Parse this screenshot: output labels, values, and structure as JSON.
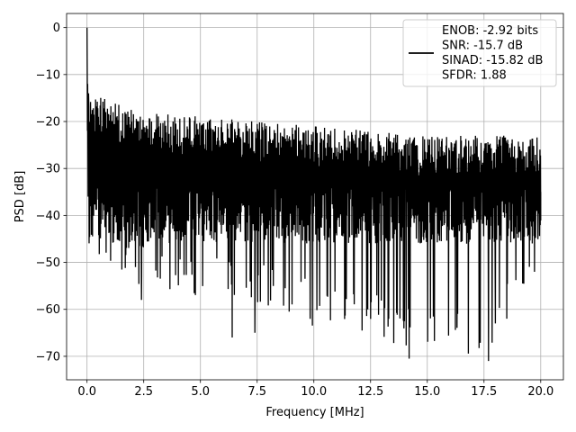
{
  "chart_data": {
    "type": "line",
    "title": "",
    "xlabel": "Frequency [MHz]",
    "ylabel": "PSD [dB]",
    "xlim": [
      -0.9,
      21.0
    ],
    "ylim": [
      -75,
      3
    ],
    "x_ticks": [
      0.0,
      2.5,
      5.0,
      7.5,
      10.0,
      12.5,
      15.0,
      17.5,
      20.0
    ],
    "x_tick_labels": [
      "0.0",
      "2.5",
      "5.0",
      "7.5",
      "10.0",
      "12.5",
      "15.0",
      "17.5",
      "20.0"
    ],
    "y_ticks": [
      0,
      -10,
      -20,
      -30,
      -40,
      -50,
      -60,
      -70
    ],
    "y_tick_labels": [
      "0",
      "−10",
      "−20",
      "−30",
      "−40",
      "−50",
      "−60",
      "−70"
    ],
    "grid": true,
    "legend": {
      "placement": "top-right",
      "entries": [
        "ENOB: -2.92 bits",
        "SNR: -15.7 dB",
        "SINAD: -15.82 dB",
        "SFDR: 1.88"
      ]
    },
    "series": [
      {
        "color": "#000000",
        "x_range": [
          0.0,
          20.0
        ],
        "peak": {
          "x": 0.0,
          "y": 0
        },
        "envelope_x": [
          0.1,
          2.5,
          5.0,
          7.5,
          10.0,
          12.5,
          15.0,
          17.5,
          20.0
        ],
        "upper_envelope_y": [
          -13,
          -17,
          -18,
          -19,
          -20,
          -21,
          -22,
          -22,
          -22
        ],
        "lower_envelope_y": [
          -52,
          -56,
          -58,
          -60,
          -64,
          -66,
          -70,
          -71,
          -50
        ],
        "typical_level": -30,
        "notable_dips": [
          {
            "x": 2.4,
            "y": -58
          },
          {
            "x": 6.4,
            "y": -66
          },
          {
            "x": 7.4,
            "y": -65
          },
          {
            "x": 13.3,
            "y": -62
          },
          {
            "x": 14.2,
            "y": -70.5
          },
          {
            "x": 17.7,
            "y": -71
          },
          {
            "x": 18.0,
            "y": -63
          }
        ]
      }
    ]
  }
}
